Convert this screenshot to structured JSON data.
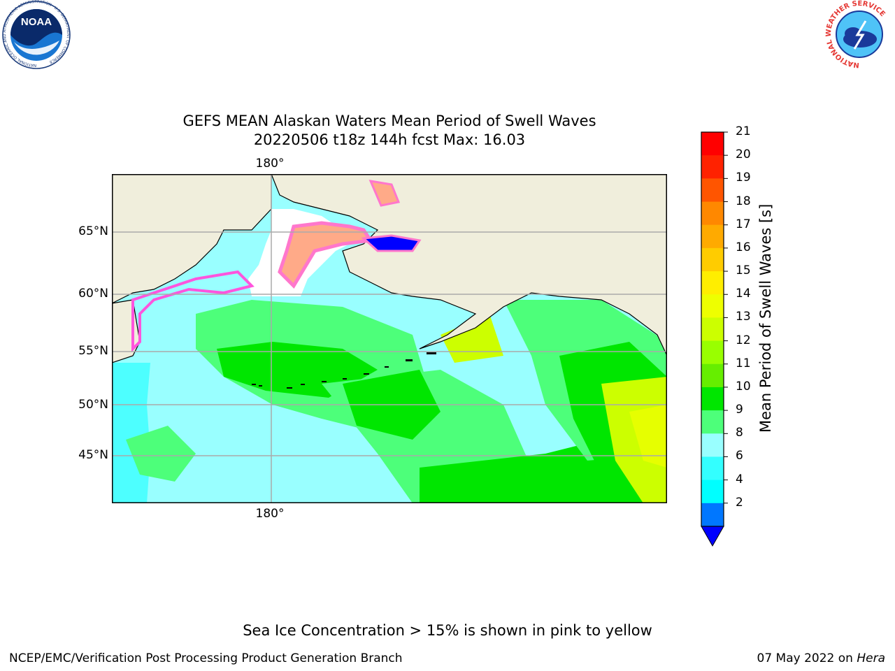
{
  "header": {
    "title_line1": "GEFS MEAN Alaskan Waters Mean Period of Swell Waves",
    "title_line2": "20220506 t18z 144h fcst   Max: 16.03"
  },
  "logos": {
    "noaa": {
      "text": "NOAA",
      "ring_text": "NATIONAL OCEANIC AND ATMOSPHERIC ADMINISTRATION · U.S. DEPARTMENT OF COMMERCE"
    },
    "nws": {
      "ring_text": "NATIONAL WEATHER SERVICE"
    }
  },
  "map": {
    "lat_labels": [
      "65°N",
      "60°N",
      "55°N",
      "50°N",
      "45°N"
    ],
    "lon_label_top": "180°",
    "lon_label_bottom": "180°",
    "colors": {
      "land": "#f0eedc",
      "ice_white": "#ffffff",
      "c8_9": "#99ffff",
      "c9_10": "#4dff7a",
      "c10_11": "#00e600",
      "c11_12": "#66ee00",
      "c12_13": "#ccff00",
      "c13_14": "#e6ff00",
      "ice_pink": "#ff77cc",
      "ice_orange": "#ffaa88",
      "c2_4": "#0000ff"
    }
  },
  "colorbar": {
    "label": "Mean Period of Swell Waves [s]",
    "ticks": [
      "21",
      "20",
      "19",
      "18",
      "17",
      "16",
      "15",
      "14",
      "13",
      "12",
      "11",
      "10",
      "9",
      "8",
      "6",
      "4",
      "2"
    ],
    "colors_top_to_bottom": [
      "#ff0000",
      "#ff2200",
      "#ff5500",
      "#ff8800",
      "#ffaa00",
      "#ffcc00",
      "#ffee00",
      "#eeff00",
      "#ccff00",
      "#99ff00",
      "#66ee00",
      "#00e600",
      "#4dff7a",
      "#99ffff",
      "#33ffff",
      "#00ffff",
      "#0077ff"
    ],
    "extend_color": "#0000ff"
  },
  "footer": {
    "note": "Sea Ice Concentration > 15% is shown in pink to yellow",
    "left": "NCEP/EMC/Verification Post Processing Product Generation Branch",
    "date": "07 May 2022 on ",
    "machine": "Hera"
  }
}
